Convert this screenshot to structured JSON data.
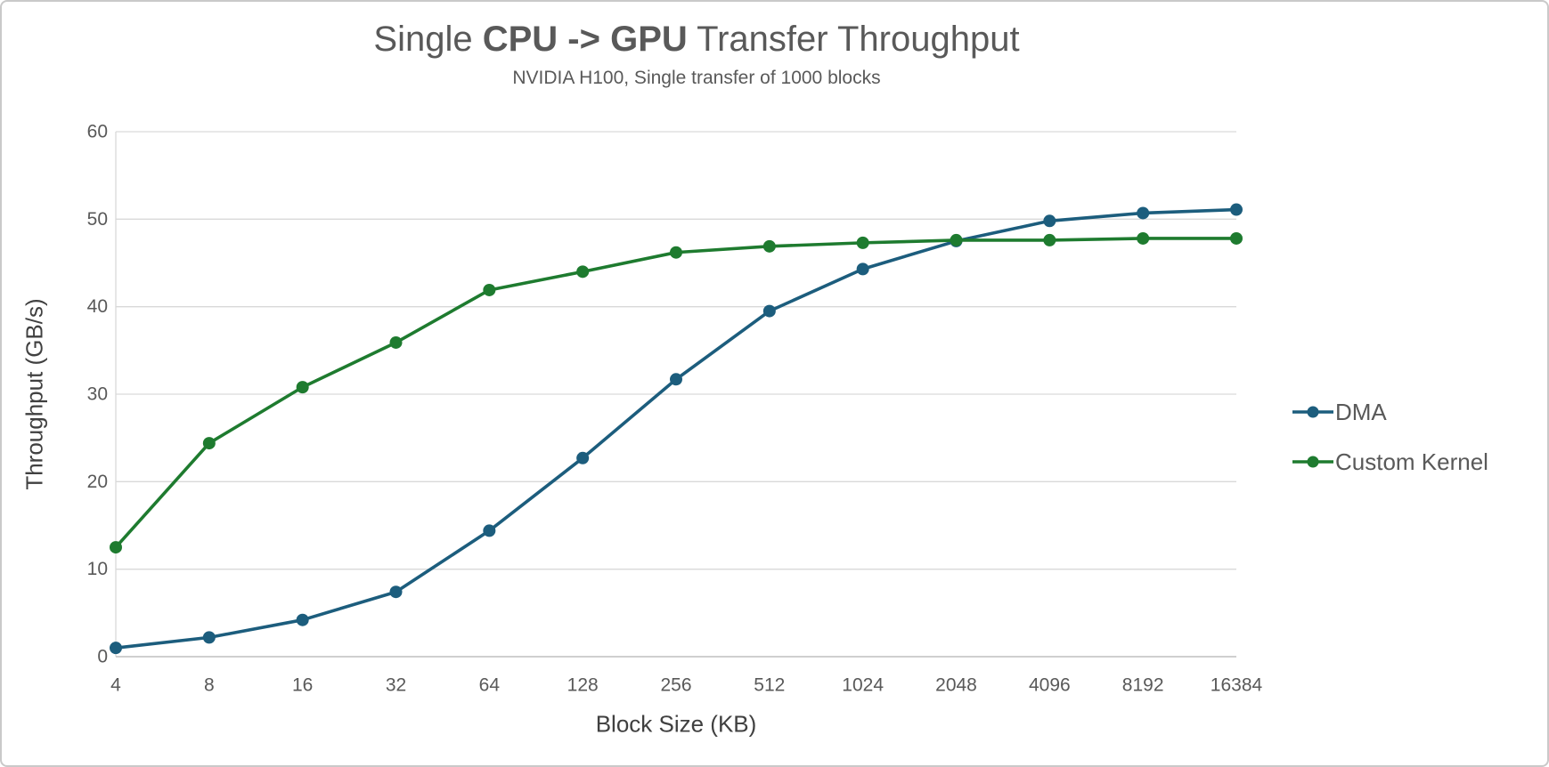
{
  "header": {
    "title_parts": [
      {
        "text": "Single ",
        "bold": false
      },
      {
        "text": "CPU -> GPU",
        "bold": true
      },
      {
        "text": " Transfer Throughput",
        "bold": false
      }
    ],
    "subtitle": "NVIDIA H100, Single transfer of 1000 blocks"
  },
  "chart_data": {
    "type": "line",
    "title": "Single CPU -> GPU Transfer Throughput",
    "subtitle": "NVIDIA H100, Single transfer of 1000 blocks",
    "xlabel": "Block Size (KB)",
    "ylabel": "Throughput (GB/s)",
    "categories": [
      "4",
      "8",
      "16",
      "32",
      "64",
      "128",
      "256",
      "512",
      "1024",
      "2048",
      "4096",
      "8192",
      "16384"
    ],
    "y_ticks": [
      0,
      10,
      20,
      30,
      40,
      50,
      60
    ],
    "ylim": [
      0,
      60
    ],
    "grid": "horizontal",
    "legend_position": "right",
    "series": [
      {
        "name": "DMA",
        "color": "#1C5D7D",
        "marker": "circle",
        "values": [
          1.0,
          2.2,
          4.2,
          7.4,
          14.4,
          22.7,
          31.7,
          39.5,
          44.3,
          47.5,
          49.8,
          50.7,
          51.1
        ]
      },
      {
        "name": "Custom Kernel",
        "color": "#1E7B2F",
        "marker": "circle",
        "values": [
          12.5,
          24.4,
          30.8,
          35.9,
          41.9,
          44.0,
          46.2,
          46.9,
          47.3,
          47.6,
          47.6,
          47.8,
          47.8
        ]
      }
    ]
  },
  "colors": {
    "gridline": "#D9D9D9",
    "y_axis_line": "#D9D9D9",
    "x_axis_line": "#BFBFBF",
    "tick_label": "#595959",
    "title": "#595959",
    "axis_title": "#404040",
    "legend_text": "#595959",
    "background": "#FFFFFF",
    "border": "#C9C9C9"
  }
}
